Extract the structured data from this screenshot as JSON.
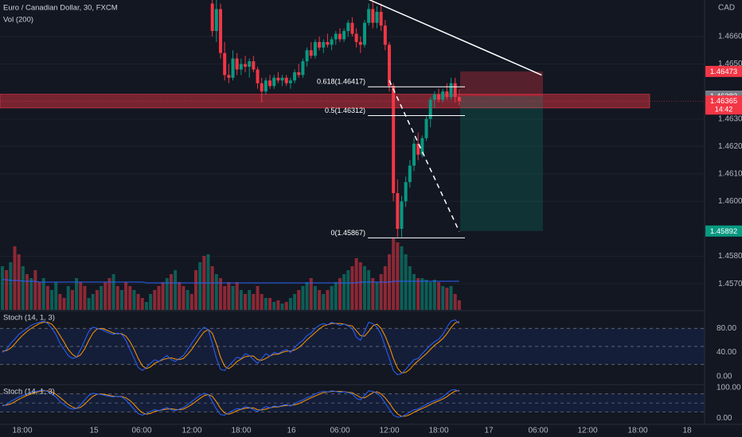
{
  "chart_data": {
    "type": "candlestick",
    "title": "Euro / Canadian Dollar, 30, FXCM",
    "currency": "CAD",
    "ylim": [
      1.45605,
      1.46733
    ],
    "yticks": [
      {
        "value": 1.466,
        "label": "1.46600"
      },
      {
        "value": 1.465,
        "label": "1.46500"
      },
      {
        "value": 1.463,
        "label": "1.46300"
      },
      {
        "value": 1.462,
        "label": "1.46200"
      },
      {
        "value": 1.461,
        "label": "1.46100"
      },
      {
        "value": 1.46,
        "label": "1.46000"
      },
      {
        "value": 1.458,
        "label": "1.45800"
      },
      {
        "value": 1.457,
        "label": "1.45700"
      }
    ],
    "up_color": "#089981",
    "down_color": "#f23645",
    "candles": [
      null,
      null,
      null,
      null,
      null,
      null,
      null,
      null,
      null,
      null,
      null,
      null,
      null,
      null,
      null,
      null,
      null,
      null,
      null,
      null,
      null,
      null,
      null,
      null,
      null,
      null,
      null,
      null,
      null,
      null,
      null,
      null,
      null,
      null,
      null,
      null,
      null,
      null,
      null,
      null,
      null,
      null,
      null,
      null,
      null,
      null,
      null,
      null,
      null,
      null,
      null,
      [
        1.4672,
        1.4675,
        1.466,
        1.4662
      ],
      [
        1.4662,
        1.4676,
        1.4658,
        1.467
      ],
      [
        1.467,
        1.4672,
        1.4652,
        1.4654
      ],
      [
        1.4654,
        1.4658,
        1.4644,
        1.4646
      ],
      [
        1.4646,
        1.465,
        1.4643,
        1.4645
      ],
      [
        1.4645,
        1.4655,
        1.4644,
        1.4652
      ],
      [
        1.4652,
        1.4654,
        1.4646,
        1.4648
      ],
      [
        1.4648,
        1.4652,
        1.4646,
        1.465
      ],
      [
        1.465,
        1.4653,
        1.4647,
        1.4649
      ],
      [
        1.4649,
        1.4652,
        1.4645,
        1.4651
      ],
      [
        1.4651,
        1.4653,
        1.4647,
        1.4648
      ],
      [
        1.4648,
        1.4649,
        1.4641,
        1.4643
      ],
      [
        1.4643,
        1.4645,
        1.4636,
        1.464
      ],
      [
        1.464,
        1.4645,
        1.4639,
        1.4644
      ],
      [
        1.4644,
        1.4646,
        1.4641,
        1.4642
      ],
      [
        1.4642,
        1.4646,
        1.4641,
        1.4645
      ],
      [
        1.4645,
        1.4647,
        1.4643,
        1.4644
      ],
      [
        1.4644,
        1.4646,
        1.4642,
        1.4645
      ],
      [
        1.4645,
        1.4646,
        1.4642,
        1.4643
      ],
      [
        1.4643,
        1.4645,
        1.4641,
        1.4644
      ],
      [
        1.4644,
        1.4648,
        1.4643,
        1.4647
      ],
      [
        1.4647,
        1.465,
        1.4645,
        1.4646
      ],
      [
        1.4646,
        1.4652,
        1.4645,
        1.4651
      ],
      [
        1.4651,
        1.4656,
        1.4649,
        1.4655
      ],
      [
        1.4655,
        1.4658,
        1.4652,
        1.4653
      ],
      [
        1.4653,
        1.4659,
        1.4652,
        1.4658
      ],
      [
        1.4658,
        1.466,
        1.4655,
        1.4656
      ],
      [
        1.4656,
        1.4659,
        1.4654,
        1.4658
      ],
      [
        1.4658,
        1.4661,
        1.4656,
        1.4657
      ],
      [
        1.4657,
        1.466,
        1.4655,
        1.4659
      ],
      [
        1.4659,
        1.4662,
        1.4657,
        1.4661
      ],
      [
        1.4661,
        1.4663,
        1.4658,
        1.4659
      ],
      [
        1.4659,
        1.4663,
        1.4658,
        1.4662
      ],
      [
        1.4662,
        1.4666,
        1.466,
        1.4665
      ],
      [
        1.4665,
        1.4667,
        1.466,
        1.4661
      ],
      [
        1.4661,
        1.4663,
        1.4656,
        1.4658
      ],
      [
        1.4658,
        1.466,
        1.4654,
        1.4657
      ],
      [
        1.4657,
        1.4666,
        1.4656,
        1.4665
      ],
      [
        1.4665,
        1.4672,
        1.4664,
        1.467
      ],
      [
        1.467,
        1.4673,
        1.4663,
        1.4665
      ],
      [
        1.4665,
        1.4671,
        1.4663,
        1.4669
      ],
      [
        1.4669,
        1.4672,
        1.4662,
        1.4664
      ],
      [
        1.4664,
        1.4666,
        1.4655,
        1.4657
      ],
      [
        1.4657,
        1.4658,
        1.464,
        1.4642
      ],
      [
        1.4642,
        1.4643,
        1.46,
        1.4603
      ],
      [
        1.4603,
        1.4608,
        1.4587,
        1.459
      ],
      [
        1.459,
        1.4602,
        1.4587,
        1.46
      ],
      [
        1.46,
        1.4609,
        1.4598,
        1.4607
      ],
      [
        1.4607,
        1.4615,
        1.4605,
        1.4613
      ],
      [
        1.4613,
        1.4623,
        1.4611,
        1.4621
      ],
      [
        1.4621,
        1.4625,
        1.4615,
        1.4617
      ],
      [
        1.4617,
        1.4624,
        1.4616,
        1.4623
      ],
      [
        1.4623,
        1.4631,
        1.4622,
        1.463
      ],
      [
        1.463,
        1.4638,
        1.4627,
        1.4637
      ],
      [
        1.4637,
        1.464,
        1.4634,
        1.4639
      ],
      [
        1.4639,
        1.4641,
        1.4636,
        1.4637
      ],
      [
        1.4637,
        1.4641,
        1.4636,
        1.464
      ],
      [
        1.464,
        1.4643,
        1.4637,
        1.4638
      ],
      [
        1.4638,
        1.4645,
        1.4637,
        1.4643
      ],
      [
        1.4643,
        1.4645,
        1.4636,
        1.4638
      ],
      [
        1.4638,
        1.4641,
        1.4635,
        1.46365
      ]
    ],
    "volume": {
      "label": "Vol (200)",
      "vlim": [
        0,
        100
      ],
      "ma_color": "#2962ff",
      "values": [
        55,
        50,
        60,
        80,
        70,
        55,
        45,
        40,
        50,
        35,
        40,
        30,
        25,
        35,
        20,
        15,
        30,
        25,
        40,
        35,
        30,
        15,
        20,
        25,
        30,
        35,
        40,
        45,
        30,
        25,
        35,
        30,
        25,
        20,
        15,
        10,
        20,
        25,
        30,
        35,
        40,
        45,
        50,
        35,
        30,
        25,
        20,
        50,
        60,
        68,
        70,
        55,
        45,
        40,
        30,
        35,
        30,
        35,
        25,
        20,
        25,
        20,
        30,
        20,
        15,
        15,
        10,
        12,
        8,
        10,
        15,
        20,
        25,
        30,
        35,
        40,
        30,
        25,
        20,
        25,
        30,
        35,
        40,
        45,
        50,
        55,
        65,
        60,
        55,
        50,
        40,
        35,
        45,
        55,
        70,
        90,
        85,
        80,
        70,
        55,
        45,
        40,
        40,
        38,
        35,
        38,
        35,
        30,
        28,
        30,
        20,
        12
      ],
      "up": [
        1,
        0,
        1,
        0,
        0,
        1,
        0,
        1,
        0,
        0,
        1,
        0,
        1,
        1,
        0,
        0,
        1,
        0,
        1,
        0,
        0,
        1,
        1,
        0,
        1,
        0,
        0,
        1,
        0,
        1,
        0,
        0,
        1,
        0,
        0,
        1,
        1,
        0,
        0,
        0,
        1,
        0,
        1,
        0,
        0,
        1,
        0,
        0,
        1,
        0,
        1,
        0,
        1,
        0,
        0,
        0,
        1,
        0,
        1,
        0,
        1,
        0,
        0,
        0,
        1,
        0,
        1,
        0,
        1,
        0,
        1,
        1,
        0,
        1,
        1,
        0,
        1,
        0,
        1,
        0,
        1,
        1,
        0,
        1,
        1,
        0,
        0,
        0,
        1,
        1,
        0,
        1,
        0,
        0,
        0,
        0,
        0,
        1,
        1,
        1,
        1,
        0,
        1,
        1,
        1,
        1,
        0,
        1,
        0,
        1,
        0,
        0
      ],
      "ma": [
        38,
        38,
        37,
        37,
        37,
        36,
        36,
        36,
        36,
        35,
        35,
        35,
        35,
        35,
        35,
        35,
        35,
        35,
        35,
        35,
        35,
        35,
        35,
        35,
        35,
        35,
        35,
        35,
        35,
        35,
        35,
        35,
        35,
        35,
        35,
        34,
        34,
        34,
        34,
        34,
        34,
        34,
        34,
        34,
        34,
        34,
        34,
        34,
        34,
        34,
        34,
        34,
        34,
        34,
        34,
        34,
        34,
        34,
        34,
        34,
        34,
        34,
        34,
        34,
        34,
        34,
        34,
        34,
        34,
        34,
        34,
        34,
        34,
        34,
        34,
        34,
        34,
        34,
        34,
        34,
        34,
        34,
        34,
        34,
        34,
        34,
        34,
        35,
        35,
        35,
        35,
        35,
        35,
        35,
        35,
        36,
        36,
        36,
        36,
        36,
        36,
        36,
        36,
        36,
        36,
        36,
        36,
        36,
        36,
        36,
        36,
        36
      ]
    },
    "zone": [
      1.4639,
      1.4634
    ],
    "position": {
      "stop": 1.46473,
      "entry": 1.46383,
      "target": 1.45892,
      "last": 1.46365,
      "countdown": "14:42"
    },
    "trend_line": [
      [
        89,
        1.46735
      ],
      [
        131,
        1.4646
      ]
    ],
    "dashed_line": [
      [
        94,
        1.4644
      ],
      [
        111,
        1.4589
      ]
    ],
    "fib": [
      {
        "value": 1.46417,
        "label": "0.618(1.46417)"
      },
      {
        "value": 1.46312,
        "label": "0.5(1.46312)"
      },
      {
        "value": 1.45867,
        "label": "0(1.45867)"
      }
    ],
    "stoch": [
      {
        "label": "Stoch (14, 1, 3)",
        "ylim": [
          -12,
          108
        ],
        "yticks": [
          {
            "value": 0,
            "label": "0.00"
          },
          {
            "value": 40,
            "label": "40.00"
          },
          {
            "value": 80,
            "label": "80.00"
          }
        ],
        "levels": [
          20,
          50,
          80
        ],
        "k_color": "#2962ff",
        "d_color": "#ff9800",
        "k": [
          40,
          45,
          55,
          62,
          70,
          75,
          80,
          85,
          88,
          90,
          92,
          88,
          80,
          70,
          55,
          45,
          35,
          30,
          32,
          45,
          60,
          75,
          82,
          80,
          78,
          75,
          72,
          70,
          72,
          70,
          60,
          45,
          30,
          15,
          10,
          15,
          22,
          28,
          25,
          30,
          35,
          28,
          25,
          30,
          35,
          45,
          55,
          65,
          75,
          82,
          78,
          55,
          30,
          12,
          10,
          18,
          25,
          32,
          30,
          38,
          35,
          28,
          22,
          30,
          38,
          34,
          40,
          38,
          42,
          45,
          40,
          48,
          55,
          60,
          68,
          72,
          80,
          85,
          88,
          86,
          90,
          88,
          85,
          87,
          84,
          80,
          65,
          60,
          75,
          90,
          88,
          82,
          70,
          50,
          30,
          10,
          3,
          5,
          12,
          20,
          28,
          30,
          38,
          45,
          52,
          58,
          62,
          70,
          82,
          92,
          94,
          88
        ],
        "d": [
          42,
          43,
          47,
          54,
          62,
          69,
          75,
          80,
          84,
          88,
          90,
          90,
          87,
          79,
          68,
          57,
          45,
          37,
          32,
          36,
          46,
          60,
          72,
          79,
          80,
          78,
          75,
          72,
          71,
          71,
          67,
          58,
          45,
          30,
          18,
          13,
          16,
          22,
          25,
          28,
          30,
          31,
          29,
          28,
          30,
          37,
          45,
          55,
          65,
          74,
          78,
          72,
          54,
          32,
          17,
          13,
          18,
          25,
          29,
          33,
          34,
          34,
          28,
          27,
          30,
          34,
          37,
          37,
          40,
          42,
          42,
          44,
          48,
          54,
          61,
          67,
          73,
          79,
          84,
          86,
          88,
          88,
          88,
          87,
          85,
          84,
          76,
          68,
          67,
          75,
          84,
          87,
          80,
          67,
          50,
          30,
          14,
          6,
          7,
          12,
          20,
          26,
          32,
          38,
          45,
          52,
          57,
          63,
          71,
          81,
          89,
          91
        ]
      },
      {
        "label": "Stoch (14, 1, 3)",
        "ylim": [
          -20,
          108
        ],
        "yticks": [
          {
            "value": 0,
            "label": "0.00"
          },
          {
            "value": 100,
            "label": "100.00"
          }
        ],
        "levels": [
          20,
          50,
          80
        ],
        "k_color": "#2962ff",
        "d_color": "#ff9800",
        "k": [
          40,
          45,
          55,
          62,
          70,
          75,
          80,
          85,
          88,
          90,
          92,
          88,
          80,
          70,
          55,
          45,
          35,
          30,
          32,
          45,
          60,
          75,
          82,
          80,
          78,
          75,
          72,
          70,
          72,
          70,
          60,
          45,
          30,
          15,
          10,
          15,
          22,
          28,
          25,
          30,
          35,
          28,
          25,
          30,
          35,
          45,
          55,
          65,
          75,
          82,
          78,
          55,
          30,
          12,
          10,
          18,
          25,
          32,
          30,
          38,
          35,
          28,
          22,
          30,
          38,
          34,
          40,
          38,
          42,
          45,
          40,
          48,
          55,
          60,
          68,
          72,
          80,
          85,
          88,
          86,
          90,
          88,
          85,
          87,
          84,
          80,
          65,
          60,
          75,
          90,
          88,
          82,
          70,
          50,
          30,
          10,
          3,
          5,
          12,
          20,
          28,
          30,
          38,
          45,
          52,
          58,
          62,
          70,
          82,
          92,
          94,
          88
        ],
        "d": [
          42,
          43,
          47,
          54,
          62,
          69,
          75,
          80,
          84,
          88,
          90,
          90,
          87,
          79,
          68,
          57,
          45,
          37,
          32,
          36,
          46,
          60,
          72,
          79,
          80,
          78,
          75,
          72,
          71,
          71,
          67,
          58,
          45,
          30,
          18,
          13,
          16,
          22,
          25,
          28,
          30,
          31,
          29,
          28,
          30,
          37,
          45,
          55,
          65,
          74,
          78,
          72,
          54,
          32,
          17,
          13,
          18,
          25,
          29,
          33,
          34,
          34,
          28,
          27,
          30,
          34,
          37,
          37,
          40,
          42,
          42,
          44,
          48,
          54,
          61,
          67,
          73,
          79,
          84,
          86,
          88,
          88,
          88,
          87,
          85,
          84,
          76,
          68,
          67,
          75,
          84,
          87,
          80,
          67,
          50,
          30,
          14,
          6,
          7,
          12,
          20,
          26,
          32,
          38,
          45,
          52,
          57,
          63,
          71,
          81,
          89,
          91
        ]
      }
    ],
    "x_labels": [
      "18:00",
      "15",
      "06:00",
      "12:00",
      "18:00",
      "16",
      "06:00",
      "12:00",
      "18:00",
      "17",
      "06:00",
      "12:00",
      "18:00",
      "18"
    ]
  }
}
